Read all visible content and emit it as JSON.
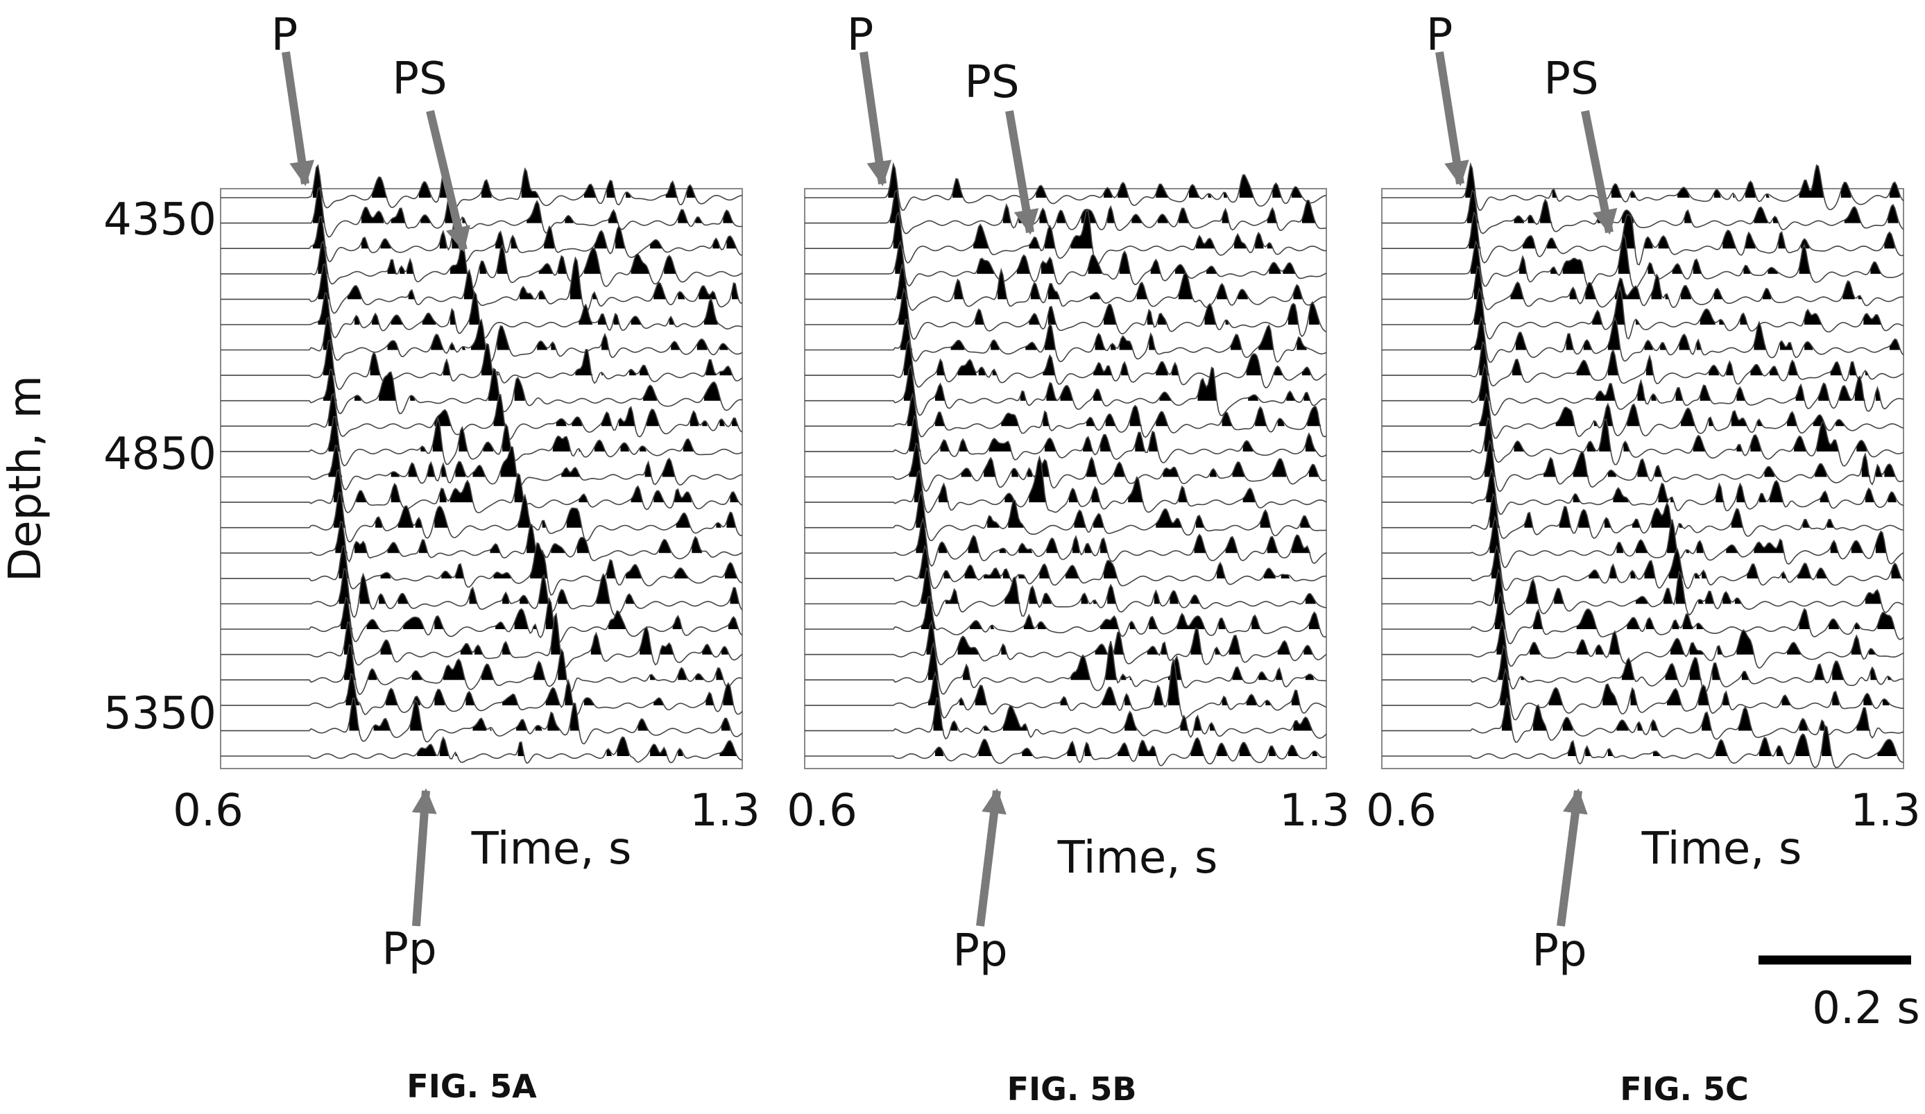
{
  "figure": {
    "y_axis_label": "Depth, m",
    "scale_bar_label": "0.2 s",
    "scale_bar_value_s": 0.2
  },
  "chart_data": [
    {
      "type": "wiggle-trace seismic section",
      "caption": "FIG. 5A",
      "xlabel": "Time, s",
      "ylabel": "Depth, m",
      "xlim": [
        0.6,
        1.3
      ],
      "x_tick_labels": [
        "0.6",
        "1.3"
      ],
      "y_tick_labels": [
        "4350",
        "4850",
        "5350"
      ],
      "y_ticks": [
        4350,
        4850,
        5350
      ],
      "depth_range": [
        4350,
        5450
      ],
      "trace_count": 23,
      "arrows": [
        {
          "label": "P",
          "time": 0.73,
          "depth": 4350,
          "from": "top"
        },
        {
          "label": "PS",
          "time": 0.92,
          "depth": 4450,
          "from": "top"
        },
        {
          "label": "Pp",
          "time": 0.9,
          "from": "bottom"
        }
      ],
      "events": [
        {
          "name": "P",
          "t0": 0.73,
          "t1": 0.78,
          "d0": 4350,
          "d1": 5430,
          "strength": 1.0
        },
        {
          "name": "PS",
          "t0": 0.9,
          "t1": 1.08,
          "d0": 4350,
          "d1": 5430,
          "strength": 0.9
        },
        {
          "name": "",
          "t0": 1.01,
          "t1": 1.09,
          "d0": 4350,
          "d1": 4600,
          "strength": 0.6
        }
      ]
    },
    {
      "type": "wiggle-trace seismic section",
      "caption": "FIG. 5B",
      "xlabel": "Time, s",
      "xlim": [
        0.6,
        1.3
      ],
      "x_tick_labels": [
        "0.6",
        "1.3"
      ],
      "depth_range": [
        4350,
        5450
      ],
      "trace_count": 23,
      "arrows": [
        {
          "label": "P",
          "time": 0.72,
          "depth": 4350,
          "from": "top"
        },
        {
          "label": "PS",
          "time": 0.9,
          "depth": 4420,
          "from": "top"
        },
        {
          "label": "Pp",
          "time": 0.86,
          "from": "bottom"
        }
      ],
      "events": [
        {
          "name": "P",
          "t0": 0.72,
          "t1": 0.78,
          "d0": 4350,
          "d1": 5430,
          "strength": 1.0
        },
        {
          "name": "",
          "t0": 0.93,
          "t1": 0.93,
          "d0": 4420,
          "d1": 4750,
          "strength": 0.6
        },
        {
          "name": "",
          "t0": 0.98,
          "t1": 1.04,
          "d0": 4850,
          "d1": 5430,
          "strength": 0.5
        }
      ]
    },
    {
      "type": "wiggle-trace seismic section",
      "caption": "FIG. 5C",
      "xlabel": "Time, s",
      "xlim": [
        0.6,
        1.3
      ],
      "x_tick_labels": [
        "0.6",
        "1.3"
      ],
      "depth_range": [
        4350,
        5450
      ],
      "trace_count": 23,
      "arrows": [
        {
          "label": "P",
          "time": 0.72,
          "depth": 4350,
          "from": "top"
        },
        {
          "label": "PS",
          "time": 0.9,
          "depth": 4420,
          "from": "top"
        },
        {
          "label": "Pp",
          "time": 0.87,
          "from": "bottom"
        }
      ],
      "events": [
        {
          "name": "P",
          "t0": 0.72,
          "t1": 0.77,
          "d0": 4350,
          "d1": 5430,
          "strength": 1.0
        },
        {
          "name": "",
          "t0": 0.93,
          "t1": 0.9,
          "d0": 4420,
          "d1": 4850,
          "strength": 0.6
        },
        {
          "name": "",
          "t0": 0.97,
          "t1": 1.04,
          "d0": 4900,
          "d1": 5430,
          "strength": 0.5
        }
      ]
    }
  ],
  "colors": {
    "trace": "#444444",
    "fill": "#000000",
    "arrow": "#7a7a7a",
    "text": "#111111",
    "frame": "#888888"
  }
}
